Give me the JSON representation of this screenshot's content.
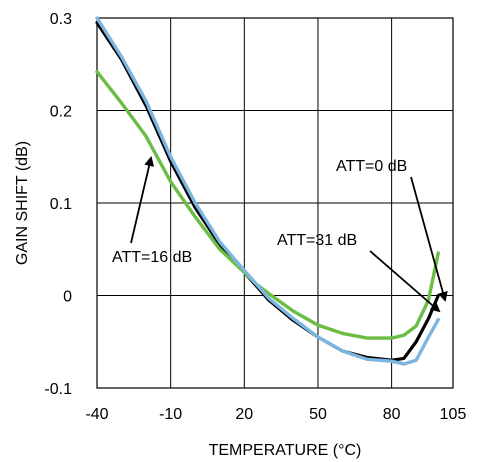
{
  "chart_data": {
    "type": "line",
    "title": "",
    "xlabel": "TEMPERATURE (°C)",
    "ylabel": "GAIN SHIFT (dB)",
    "xlim": [
      -40,
      105
    ],
    "ylim": [
      -0.1,
      0.3
    ],
    "xticks": [
      -40,
      -10,
      20,
      50,
      80,
      105
    ],
    "xtick_labels": [
      "-40",
      "-10",
      "20",
      "50",
      "80",
      "105"
    ],
    "yticks": [
      -0.1,
      0,
      0.1,
      0.2,
      0.3
    ],
    "ytick_labels": [
      "-0.1",
      "0",
      "0.1",
      "0.2",
      "0.3"
    ],
    "grid": true,
    "series": [
      {
        "name": "ATT=0 dB",
        "color": "#000000",
        "x": [
          -40,
          -30,
          -20,
          -10,
          0,
          10,
          20,
          25,
          30,
          40,
          50,
          60,
          70,
          80,
          85,
          90,
          95,
          99
        ],
        "y": [
          0.295,
          0.255,
          0.205,
          0.145,
          0.095,
          0.055,
          0.025,
          0.01,
          -0.005,
          -0.027,
          -0.045,
          -0.06,
          -0.067,
          -0.07,
          -0.068,
          -0.05,
          -0.025,
          0.0
        ]
      },
      {
        "name": "ATT=16 dB",
        "color": "#6cbd45",
        "x": [
          -40,
          -30,
          -20,
          -10,
          0,
          10,
          20,
          25,
          30,
          40,
          50,
          60,
          70,
          80,
          85,
          90,
          95,
          99
        ],
        "y": [
          0.242,
          0.208,
          0.172,
          0.123,
          0.085,
          0.05,
          0.025,
          0.012,
          0.002,
          -0.017,
          -0.032,
          -0.041,
          -0.046,
          -0.046,
          -0.043,
          -0.033,
          -0.005,
          0.046
        ]
      },
      {
        "name": "ATT=31 dB",
        "color": "#7cb5e0",
        "x": [
          -40,
          -30,
          -20,
          -10,
          0,
          10,
          20,
          25,
          30,
          40,
          50,
          60,
          70,
          80,
          85,
          90,
          95,
          99
        ],
        "y": [
          0.3,
          0.258,
          0.21,
          0.15,
          0.1,
          0.058,
          0.027,
          0.012,
          -0.003,
          -0.025,
          -0.045,
          -0.06,
          -0.069,
          -0.071,
          -0.074,
          -0.07,
          -0.045,
          -0.026
        ]
      }
    ],
    "annotations": [
      {
        "text": "ATT=0 dB",
        "series": "ATT=0 dB",
        "point": [
          97,
          0.0
        ]
      },
      {
        "text": "ATT=16 dB",
        "series": "ATT=16 dB",
        "point": [
          -16,
          0.153
        ]
      },
      {
        "text": "ATT=31 dB",
        "series": "ATT=31 dB",
        "point": [
          91,
          -0.052
        ]
      }
    ]
  }
}
